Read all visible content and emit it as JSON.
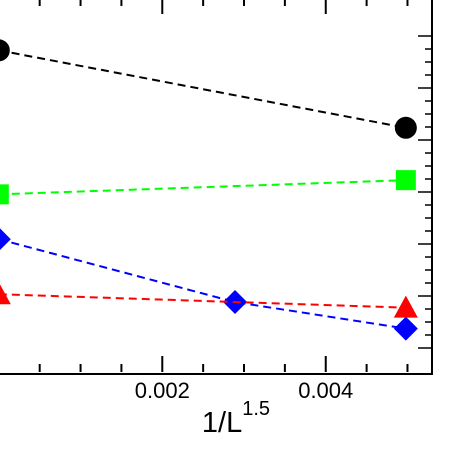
{
  "chart_data": {
    "type": "scatter",
    "title": "",
    "xlabel": {
      "base": "1/L",
      "exponent": "1.5"
    },
    "ylabel": "",
    "xlim": [
      -1e-05,
      0.0053
    ],
    "ylim": [
      0,
      1
    ],
    "x_ticks": [
      {
        "value": 0.002,
        "label": "0.002"
      },
      {
        "value": 0.004,
        "label": "0.004"
      }
    ],
    "grid": false,
    "series": [
      {
        "color": "#000000",
        "marker": "circle",
        "line": "dashed",
        "x": [
          0,
          0.00498
        ],
        "y": [
          0.86,
          0.653
        ]
      },
      {
        "color": "#00ff00",
        "marker": "square",
        "line": "dashed",
        "x": [
          0,
          0.00498
        ],
        "y": [
          0.475,
          0.513
        ]
      },
      {
        "color": "#0000ff",
        "marker": "diamond",
        "line": "dashed",
        "x": [
          0,
          0.00289,
          0.00498
        ],
        "y": [
          0.355,
          0.187,
          0.116
        ]
      },
      {
        "color": "#ff0000",
        "marker": "triangle",
        "line": "dashed",
        "x": [
          0,
          0.00498
        ],
        "y": [
          0.208,
          0.172
        ]
      }
    ]
  }
}
